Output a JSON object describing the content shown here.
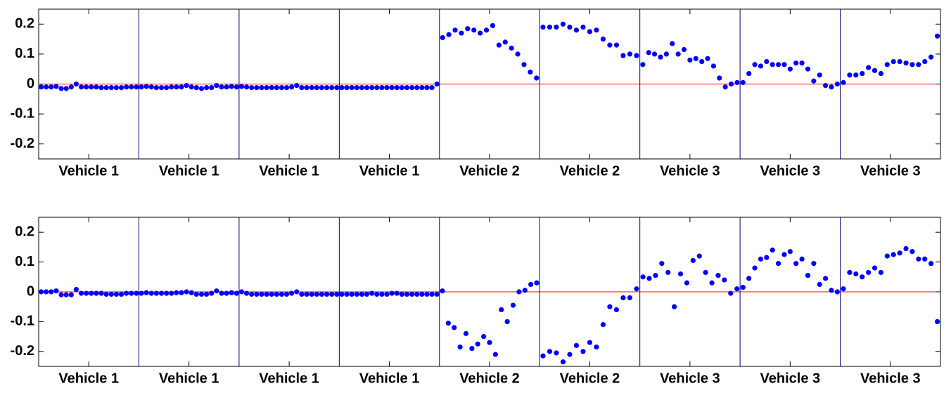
{
  "chart_data": [
    {
      "type": "scatter",
      "ylim": [
        -0.25,
        0.25
      ],
      "yticks": [
        -0.2,
        -0.1,
        0,
        0.1,
        0.2
      ],
      "color": "#0000ff",
      "zero_line_color": "#ff0000",
      "separator_color": "#000080",
      "groups": [
        {
          "label": "Vehicle 1",
          "values": [
            -0.01,
            -0.01,
            -0.01,
            -0.008,
            -0.015,
            -0.015,
            -0.01,
            0,
            -0.01,
            -0.01,
            -0.01,
            -0.01,
            -0.012,
            -0.012,
            -0.012,
            -0.012,
            -0.012,
            -0.01,
            -0.01,
            -0.01
          ]
        },
        {
          "label": "Vehicle 1",
          "values": [
            -0.01,
            -0.008,
            -0.01,
            -0.012,
            -0.012,
            -0.012,
            -0.01,
            -0.01,
            -0.01,
            -0.005,
            -0.01,
            -0.012,
            -0.015,
            -0.012,
            -0.012,
            -0.005,
            -0.01,
            -0.01,
            -0.008,
            -0.01
          ]
        },
        {
          "label": "Vehicle 1",
          "values": [
            -0.008,
            -0.01,
            -0.012,
            -0.012,
            -0.012,
            -0.012,
            -0.012,
            -0.012,
            -0.012,
            -0.012,
            -0.01,
            -0.005,
            -0.012,
            -0.012,
            -0.012,
            -0.012,
            -0.012,
            -0.012,
            -0.012,
            -0.012
          ]
        },
        {
          "label": "Vehicle 1",
          "values": [
            -0.012,
            -0.012,
            -0.012,
            -0.012,
            -0.012,
            -0.012,
            -0.012,
            -0.012,
            -0.012,
            -0.012,
            -0.012,
            -0.012,
            -0.012,
            -0.012,
            -0.012,
            -0.012,
            -0.012,
            -0.012,
            -0.012,
            0
          ]
        },
        {
          "label": "Vehicle 2",
          "values": [
            0.155,
            0.165,
            0.18,
            0.17,
            0.185,
            0.18,
            0.17,
            0.18,
            0.195,
            0.13,
            0.14,
            0.12,
            0.1,
            0.065,
            0.04,
            0.02
          ]
        },
        {
          "label": "Vehicle 2",
          "values": [
            0.19,
            0.19,
            0.19,
            0.2,
            0.19,
            0.18,
            0.19,
            0.175,
            0.18,
            0.15,
            0.13,
            0.13,
            0.095,
            0.1,
            0.095
          ]
        },
        {
          "label": "Vehicle 3",
          "values": [
            0.065,
            0.105,
            0.1,
            0.09,
            0.1,
            0.135,
            0.1,
            0.115,
            0.08,
            0.085,
            0.075,
            0.085,
            0.06,
            0.02,
            -0.01,
            0,
            0.005
          ]
        },
        {
          "label": "Vehicle 3",
          "values": [
            0.005,
            0.035,
            0.065,
            0.06,
            0.075,
            0.065,
            0.065,
            0.065,
            0.05,
            0.07,
            0.07,
            0.05,
            0.01,
            0.03,
            -0.005,
            -0.01,
            0
          ]
        },
        {
          "label": "Vehicle 3",
          "values": [
            0.005,
            0.03,
            0.03,
            0.035,
            0.055,
            0.045,
            0.035,
            0.065,
            0.075,
            0.075,
            0.07,
            0.065,
            0.065,
            0.075,
            0.09,
            0.16
          ]
        }
      ]
    },
    {
      "type": "scatter",
      "ylim": [
        -0.25,
        0.25
      ],
      "yticks": [
        -0.2,
        -0.1,
        0,
        0.1,
        0.2
      ],
      "color": "#0000ff",
      "zero_line_color": "#ff0000",
      "separator_color": "#000080",
      "groups": [
        {
          "label": "Vehicle 1",
          "values": [
            0,
            0,
            0,
            0.003,
            -0.01,
            -0.01,
            -0.01,
            0.008,
            -0.005,
            -0.005,
            -0.005,
            -0.005,
            -0.005,
            -0.008,
            -0.008,
            -0.008,
            -0.008,
            -0.005,
            -0.005,
            -0.005
          ]
        },
        {
          "label": "Vehicle 1",
          "values": [
            -0.005,
            -0.003,
            -0.005,
            -0.005,
            -0.005,
            -0.005,
            -0.005,
            -0.003,
            -0.003,
            0,
            -0.003,
            -0.008,
            -0.008,
            -0.008,
            -0.005,
            0.003,
            -0.005,
            -0.005,
            -0.003,
            -0.005
          ]
        },
        {
          "label": "Vehicle 1",
          "values": [
            0,
            -0.005,
            -0.008,
            -0.008,
            -0.008,
            -0.008,
            -0.008,
            -0.008,
            -0.008,
            -0.008,
            -0.005,
            0,
            -0.008,
            -0.008,
            -0.008,
            -0.008,
            -0.008,
            -0.008,
            -0.008,
            -0.008
          ]
        },
        {
          "label": "Vehicle 1",
          "values": [
            -0.008,
            -0.008,
            -0.008,
            -0.008,
            -0.008,
            -0.008,
            -0.005,
            -0.008,
            -0.008,
            -0.008,
            -0.005,
            -0.005,
            -0.008,
            -0.008,
            -0.008,
            -0.008,
            -0.008,
            -0.008,
            -0.008,
            -0.008
          ]
        },
        {
          "label": "Vehicle 2",
          "values": [
            0.003,
            -0.105,
            -0.12,
            -0.185,
            -0.14,
            -0.19,
            -0.175,
            -0.15,
            -0.17,
            -0.21,
            -0.06,
            -0.1,
            -0.045,
            0,
            0.005,
            0.025,
            0.03
          ]
        },
        {
          "label": "Vehicle 2",
          "values": [
            -0.215,
            -0.2,
            -0.205,
            -0.235,
            -0.21,
            -0.18,
            -0.2,
            -0.17,
            -0.185,
            -0.11,
            -0.05,
            -0.06,
            -0.02,
            -0.02,
            0.01
          ]
        },
        {
          "label": "Vehicle 3",
          "values": [
            0.05,
            0.045,
            0.055,
            0.095,
            0.065,
            -0.05,
            0.06,
            0.03,
            0.105,
            0.12,
            0.065,
            0.03,
            0.055,
            0.04,
            -0.005,
            0.01
          ]
        },
        {
          "label": "Vehicle 3",
          "values": [
            0.015,
            0.045,
            0.08,
            0.11,
            0.115,
            0.14,
            0.095,
            0.125,
            0.135,
            0.095,
            0.11,
            0.055,
            0.095,
            0.025,
            0.045,
            0.005,
            0
          ]
        },
        {
          "label": "Vehicle 3",
          "values": [
            0.01,
            0.065,
            0.06,
            0.05,
            0.065,
            0.08,
            0.065,
            0.12,
            0.125,
            0.13,
            0.145,
            0.135,
            0.11,
            0.11,
            0.095,
            -0.1
          ]
        }
      ]
    }
  ]
}
